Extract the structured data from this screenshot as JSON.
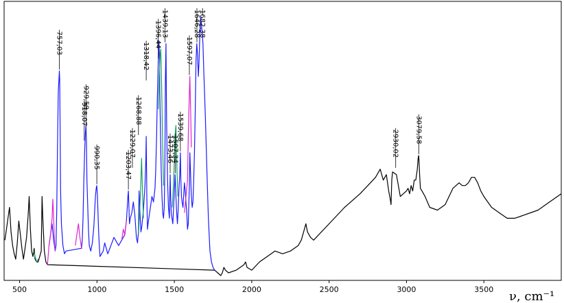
{
  "chart_data": {
    "type": "line",
    "title": "",
    "xlabel": "ν, cm⁻¹",
    "ylabel": "",
    "xlim": [
      400,
      4000
    ],
    "ylim": [
      0,
      100
    ],
    "x_ticks": [
      500,
      1000,
      1500,
      2000,
      2500,
      3000,
      3500
    ],
    "x_tick_labels": [
      "500",
      "1000",
      "1500",
      "2000",
      "2500",
      "3000",
      "3500"
    ],
    "grid": false,
    "legend": "none",
    "colors": {
      "baseline": "#000000",
      "blue": "#1a1aff",
      "magenta": "#e020d0",
      "green": "#12a060"
    },
    "series": [
      {
        "color": "#000000",
        "x": [
          405,
          415,
          425,
          435,
          445,
          455,
          465,
          475,
          485,
          495,
          505,
          515,
          525,
          535,
          545,
          555,
          562,
          570,
          578,
          586,
          594,
          600,
          610,
          620,
          630,
          640,
          645,
          650,
          660,
          670,
          680,
          1760,
          1780,
          1800,
          1810,
          1820,
          1830,
          1850,
          1900,
          1950,
          1960,
          1970,
          2000,
          2050,
          2100,
          2150,
          2200,
          2250,
          2300,
          2320,
          2340,
          2350,
          2360,
          2380,
          2400,
          2500,
          2600,
          2700,
          2750,
          2800,
          2830,
          2850,
          2870,
          2885,
          2895,
          2900,
          2905,
          2910,
          2935,
          2960,
          3000,
          3010,
          3020,
          3030,
          3040,
          3050,
          3060,
          3070,
          3075,
          3079,
          3085,
          3090,
          3100,
          3120,
          3150,
          3200,
          3250,
          3300,
          3320,
          3340,
          3360,
          3380,
          3400,
          3420,
          3440,
          3460,
          3480,
          3500,
          3550,
          3600,
          3650,
          3700,
          3750,
          3800,
          3850,
          3900,
          3950,
          4000
        ],
        "y": [
          14,
          18,
          22,
          26,
          17,
          12,
          9,
          7,
          13,
          21,
          16,
          11,
          7,
          11,
          15,
          23,
          30,
          18,
          10,
          8,
          11,
          7,
          6,
          6,
          8,
          10,
          30,
          22,
          10,
          6,
          5,
          3,
          2,
          1,
          2,
          4,
          3,
          2,
          3,
          5,
          6,
          4,
          3,
          6,
          8,
          10,
          9,
          10,
          12,
          14,
          18,
          20,
          17,
          15,
          14,
          20,
          26,
          31,
          34,
          37,
          40,
          36,
          38,
          32,
          29,
          27,
          36,
          39,
          38,
          30,
          32,
          33,
          31,
          34,
          32,
          36,
          36,
          40,
          44,
          45,
          38,
          33,
          32,
          30,
          26,
          25,
          27,
          33,
          34,
          35,
          34,
          34,
          35,
          37,
          37,
          35,
          32,
          30,
          26,
          24,
          22,
          22,
          23,
          24,
          25,
          27,
          29,
          31
        ]
      },
      {
        "color": "#1a1aff",
        "x": [
          690,
          700,
          710,
          720,
          730,
          735,
          740,
          745,
          750,
          755,
          757,
          759,
          762,
          765,
          770,
          780,
          790,
          800,
          900,
          905,
          910,
          915,
          920,
          925,
          929,
          932,
          935,
          940,
          945,
          950,
          960,
          970,
          980,
          985,
          990,
          995,
          999,
          1003,
          1006,
          1010,
          1015,
          1020,
          1040,
          1050,
          1070,
          1090,
          1110,
          1140,
          1160,
          1180,
          1190,
          1196,
          1200,
          1203,
          1206,
          1210,
          1215,
          1225,
          1235,
          1245,
          1255,
          1262,
          1268,
          1272,
          1278,
          1284,
          1290,
          1300,
          1310,
          1316,
          1318,
          1322,
          1326,
          1330,
          1335,
          1345,
          1355,
          1365,
          1375,
          1380,
          1385,
          1390,
          1396,
          1400,
          1404,
          1406,
          1410,
          1415,
          1420,
          1425,
          1430,
          1435,
          1439,
          1442,
          1446,
          1450,
          1456,
          1462,
          1468,
          1473,
          1476,
          1480,
          1485,
          1490,
          1495,
          1500,
          1505,
          1510,
          1515,
          1520,
          1525,
          1530,
          1535,
          1539,
          1542,
          1546,
          1550,
          1556,
          1560,
          1565,
          1570,
          1575,
          1580,
          1585,
          1590,
          1597,
          1600,
          1605,
          1610,
          1615,
          1620,
          1625,
          1630,
          1635,
          1640,
          1645,
          1650,
          1655,
          1660,
          1665,
          1670,
          1675,
          1680,
          1685,
          1690,
          1700,
          1710,
          1720,
          1730,
          1740,
          1750,
          1760
        ],
        "y": [
          12,
          16,
          20,
          14,
          10,
          12,
          25,
          48,
          68,
          74,
          76,
          73,
          52,
          32,
          20,
          12,
          9,
          10,
          11,
          14,
          22,
          36,
          46,
          53,
          56,
          50,
          36,
          27,
          18,
          12,
          10,
          13,
          19,
          25,
          30,
          33,
          34,
          30,
          25,
          18,
          12,
          8,
          10,
          13,
          9,
          12,
          15,
          12,
          14,
          16,
          21,
          26,
          30,
          32,
          27,
          20,
          22,
          24,
          28,
          23,
          15,
          13,
          17,
          32,
          24,
          17,
          19,
          25,
          34,
          44,
          52,
          30,
          18,
          20,
          22,
          26,
          30,
          28,
          33,
          40,
          52,
          66,
          80,
          87,
          80,
          68,
          55,
          40,
          30,
          24,
          22,
          26,
          44,
          72,
          86,
          58,
          36,
          26,
          22,
          38,
          30,
          24,
          22,
          20,
          26,
          32,
          38,
          30,
          24,
          20,
          26,
          33,
          38,
          46,
          36,
          30,
          28,
          26,
          30,
          35,
          32,
          28,
          24,
          18,
          20,
          34,
          46,
          38,
          30,
          26,
          28,
          36,
          46,
          62,
          80,
          86,
          82,
          74,
          80,
          90,
          96,
          93,
          90,
          86,
          76,
          60,
          40,
          22,
          10,
          6,
          4,
          3
        ]
      },
      {
        "color": "#e020d0",
        "segments": [
          {
            "x": [
              680,
              690,
              700,
              710,
              715,
              720,
              725,
              730
            ],
            "y": [
              5,
              12,
              16,
              22,
              29,
              22,
              14,
              10
            ]
          },
          {
            "x": [
              860,
              870,
              880,
              890,
              900,
              905
            ],
            "y": [
              12,
              16,
              20,
              15,
              11,
              11
            ]
          },
          {
            "x": [
              1160,
              1170,
              1180,
              1190
            ],
            "y": [
              14,
              18,
              16,
              21
            ]
          },
          {
            "x": [
              1565,
              1575,
              1585,
              1590,
              1597,
              1600,
              1605,
              1610
            ],
            "y": [
              24,
              30,
              36,
              52,
              68,
              74,
              62,
              48
            ]
          }
        ]
      },
      {
        "color": "#12a060",
        "segments": [
          {
            "x": [
              590,
              600,
              610,
              620
            ],
            "y": [
              10,
              8,
              6,
              7
            ]
          },
          {
            "x": [
              1268,
              1275,
              1282,
              1288,
              1295,
              1300
            ],
            "y": [
              16,
              24,
              32,
              44,
              30,
              22
            ]
          },
          {
            "x": [
              1396,
              1402,
              1408,
              1412,
              1418,
              1424,
              1430
            ],
            "y": [
              62,
              74,
              82,
              84,
              70,
              50,
              34
            ]
          },
          {
            "x": [
              1486,
              1492,
              1498,
              1504,
              1510,
              1516,
              1522
            ],
            "y": [
              26,
              32,
              40,
              52,
              56,
              42,
              30
            ]
          }
        ]
      }
    ],
    "peak_labels": [
      {
        "text": "757,03",
        "x": 757,
        "y": 76
      },
      {
        "text": "929,59",
        "x": 929,
        "y": 56
      },
      {
        "text": "918,07",
        "x": 918,
        "y": 50
      },
      {
        "text": "990,35",
        "x": 999,
        "y": 34
      },
      {
        "text": "1203,47",
        "x": 1203,
        "y": 32
      },
      {
        "text": "1229,07",
        "x": 1229,
        "y": 40
      },
      {
        "text": "1268,88",
        "x": 1268,
        "y": 52
      },
      {
        "text": "1318,42",
        "x": 1318,
        "y": 72
      },
      {
        "text": "1396,44",
        "x": 1396,
        "y": 80
      },
      {
        "text": "1439,13",
        "x": 1439,
        "y": 86
      },
      {
        "text": "1473,46",
        "x": 1473,
        "y": 38
      },
      {
        "text": "1539,68",
        "x": 1539,
        "y": 46
      },
      {
        "text": "1507,34",
        "x": 1507,
        "y": 38
      },
      {
        "text": "1597,07",
        "x": 1597,
        "y": 74
      },
      {
        "text": "1646,28",
        "x": 1646,
        "y": 86
      },
      {
        "text": "1682,38",
        "x": 1682,
        "y": 96
      },
      {
        "text": "2930,02",
        "x": 2930,
        "y": 40
      },
      {
        "text": "3079,58",
        "x": 3079,
        "y": 45
      }
    ]
  }
}
